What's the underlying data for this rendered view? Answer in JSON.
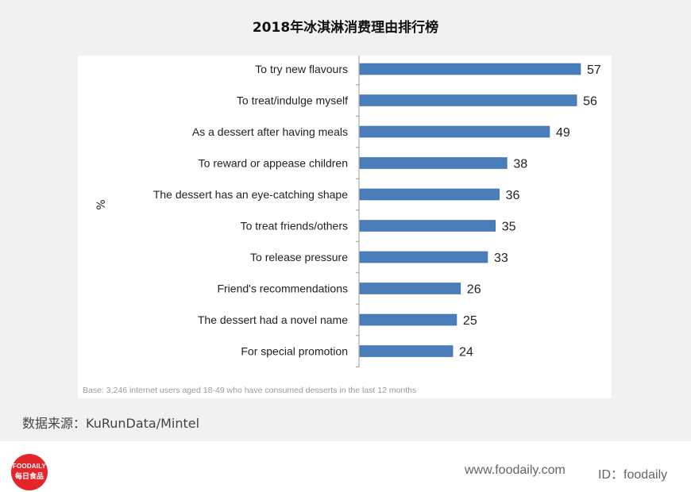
{
  "title": "2018年冰淇淋消费理由排行榜",
  "chart_data": {
    "type": "bar",
    "orientation": "horizontal",
    "categories": [
      "To try new flavours",
      "To treat/indulge myself",
      "As a dessert after having meals",
      "To reward or appease children",
      "The dessert has an eye-catching shape",
      "To treat friends/others",
      "To release pressure",
      "Friend's recommendations",
      "The dessert had a novel name",
      "For special promotion"
    ],
    "values": [
      57,
      56,
      49,
      38,
      36,
      35,
      33,
      26,
      25,
      24
    ],
    "ylabel": "%",
    "xlim": [
      0,
      60
    ],
    "bar_color": "#4a7ebb",
    "grid": false
  },
  "base_note": "Base: 3,246 internet users aged 18-49 who have consumed desserts in the last 12 months",
  "source": "数据来源：KuRunData/Mintel",
  "footer": {
    "logo_line1": "FOODAILY",
    "logo_line2": "每日食品",
    "website": "www.foodaily.com",
    "wechat_id": "ID：foodaily"
  }
}
